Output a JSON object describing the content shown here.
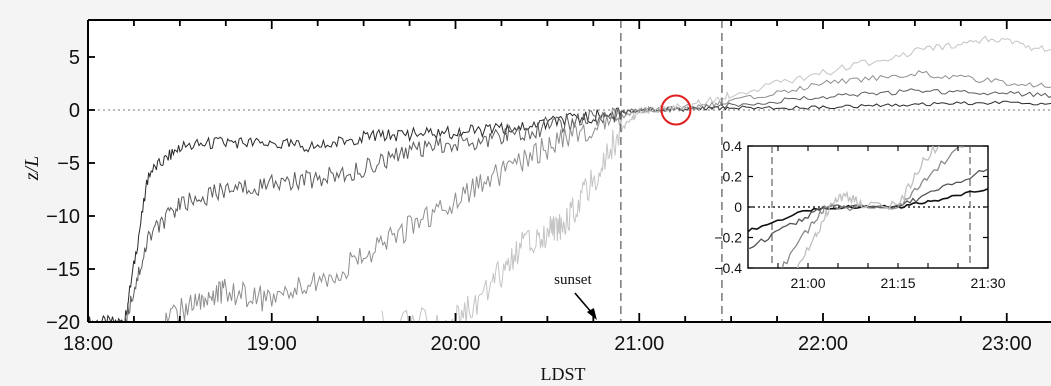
{
  "chart_data": {
    "type": "line",
    "xlabel": "LDST",
    "ylabel": "z/L",
    "xlim": [
      "18:00",
      "23:50"
    ],
    "ylim": [
      -20,
      8
    ],
    "x_ticks": [
      "18:00",
      "19:00",
      "20:00",
      "21:00",
      "22:00",
      "23:00"
    ],
    "y_ticks": [
      "5",
      "0",
      "−5",
      "−10",
      "−15",
      "−20"
    ],
    "reference_line_y": 0,
    "vertical_lines": [
      "20:54",
      "21:27"
    ],
    "annotation": {
      "text": "sunset",
      "points_to": "20:54"
    },
    "highlight": {
      "shape": "circle",
      "x": "21:12",
      "y": 0,
      "color": "#e02020"
    },
    "series_colors": [
      "#2a2a2a",
      "#5c5c5c",
      "#8e8e8e",
      "#c4c4c4"
    ],
    "series": [
      {
        "values": [
          [
            18.0,
            -20
          ],
          [
            18.2,
            -20
          ],
          [
            18.33,
            -6
          ],
          [
            18.5,
            -3.5
          ],
          [
            18.75,
            -3
          ],
          [
            19.0,
            -3.2
          ],
          [
            19.25,
            -3.5
          ],
          [
            19.5,
            -2.5
          ],
          [
            19.75,
            -2.3
          ],
          [
            20.0,
            -2.1
          ],
          [
            20.25,
            -1.8
          ],
          [
            20.5,
            -1.2
          ],
          [
            20.75,
            -0.6
          ],
          [
            21.0,
            0
          ],
          [
            21.25,
            0.1
          ],
          [
            21.5,
            0.2
          ],
          [
            22.0,
            0.25
          ],
          [
            22.5,
            0.5
          ],
          [
            23.0,
            0.7
          ],
          [
            23.5,
            0.5
          ],
          [
            23.83,
            0.6
          ]
        ]
      },
      {
        "values": [
          [
            18.2,
            -20
          ],
          [
            18.33,
            -12
          ],
          [
            18.5,
            -9
          ],
          [
            18.75,
            -7.5
          ],
          [
            19.0,
            -7
          ],
          [
            19.25,
            -6.5
          ],
          [
            19.5,
            -5.5
          ],
          [
            19.75,
            -4
          ],
          [
            20.0,
            -3.2
          ],
          [
            20.25,
            -2.5
          ],
          [
            20.5,
            -1.5
          ],
          [
            20.75,
            -0.8
          ],
          [
            21.0,
            0
          ],
          [
            21.25,
            0.1
          ],
          [
            21.5,
            0.5
          ],
          [
            22.0,
            1.2
          ],
          [
            22.5,
            1.8
          ],
          [
            23.0,
            1.6
          ],
          [
            23.5,
            1.0
          ],
          [
            23.83,
            1.2
          ]
        ]
      },
      {
        "values": [
          [
            18.4,
            -20
          ],
          [
            18.6,
            -18
          ],
          [
            18.75,
            -17
          ],
          [
            19.0,
            -18
          ],
          [
            19.25,
            -16
          ],
          [
            19.5,
            -14
          ],
          [
            19.75,
            -11
          ],
          [
            20.0,
            -8.5
          ],
          [
            20.25,
            -6
          ],
          [
            20.5,
            -3.5
          ],
          [
            20.75,
            -1.5
          ],
          [
            21.0,
            0
          ],
          [
            21.25,
            0.2
          ],
          [
            21.5,
            0.8
          ],
          [
            22.0,
            2.5
          ],
          [
            22.5,
            3.5
          ],
          [
            23.0,
            2.6
          ],
          [
            23.5,
            1.8
          ],
          [
            23.83,
            2.0
          ]
        ]
      },
      {
        "values": [
          [
            19.6,
            -20
          ],
          [
            20.0,
            -20
          ],
          [
            20.2,
            -16.5
          ],
          [
            20.35,
            -13
          ],
          [
            20.5,
            -11.5
          ],
          [
            20.6,
            -10.5
          ],
          [
            20.75,
            -6.5
          ],
          [
            20.9,
            -2
          ],
          [
            21.0,
            0
          ],
          [
            21.25,
            0.3
          ],
          [
            21.5,
            1.5
          ],
          [
            22.0,
            3.5
          ],
          [
            22.5,
            5.5
          ],
          [
            22.9,
            6.8
          ],
          [
            23.25,
            5.5
          ],
          [
            23.5,
            3.5
          ],
          [
            23.83,
            4.5
          ]
        ]
      }
    ],
    "inset": {
      "x_ticks": [
        "21:00",
        "21:15",
        "21:30"
      ],
      "y_ticks": [
        "0.4",
        "0.2",
        "0",
        "−0.2",
        "−0.4"
      ],
      "xlim": [
        "20:50",
        "21:30"
      ],
      "ylim": [
        -0.4,
        0.4
      ],
      "reference_line_y": 0,
      "vertical_lines": [
        "20:54",
        "21:27"
      ]
    }
  }
}
